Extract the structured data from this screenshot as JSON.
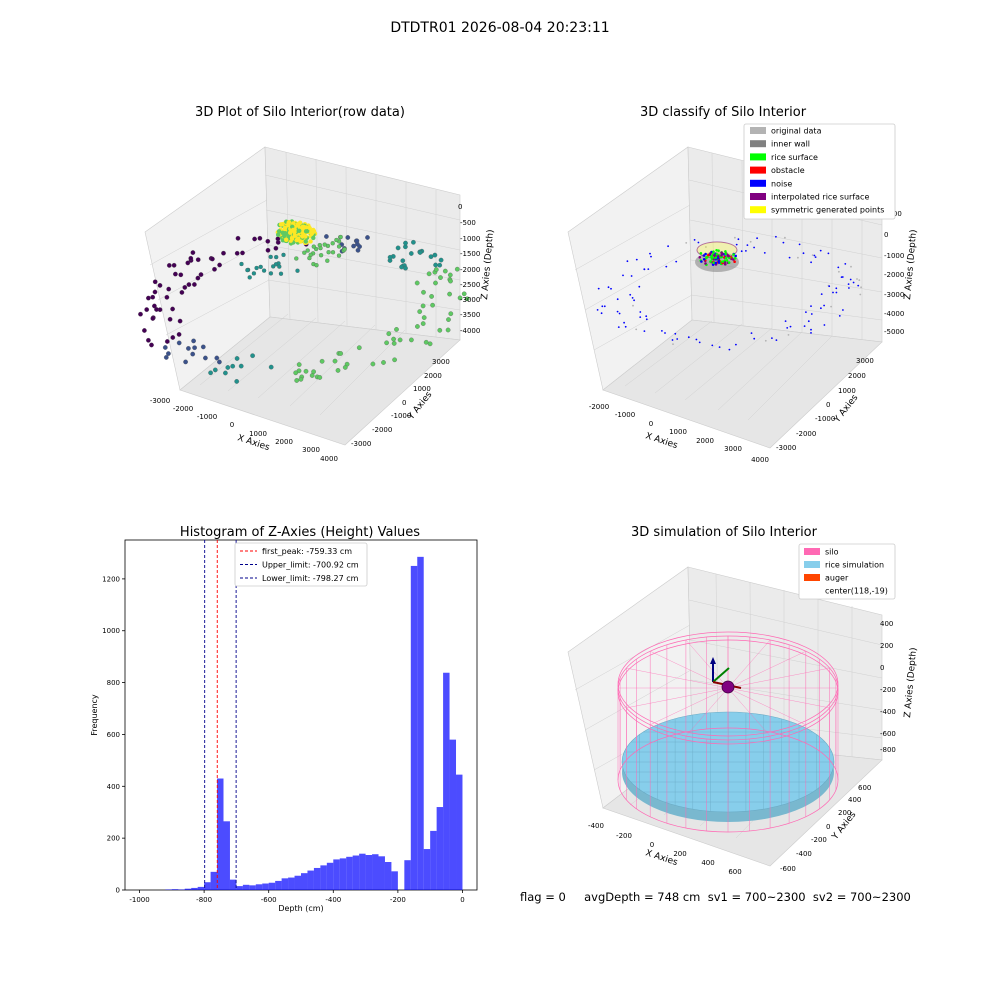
{
  "figure": {
    "suptitle": "DTDTR01 2026-08-04 20:23:11",
    "status_text": "flag = 0     avgDepth = 748 cm  sv1 = 700~2300  sv2 = 700~2300"
  },
  "chart_data": [
    {
      "type": "scatter3d",
      "title": "3D Plot of Silo Interior(row data)",
      "xlabel": "X Axies",
      "ylabel": "Y Axies",
      "zlabel": "Z Axies (Depth)",
      "xticks": [
        "-3000",
        "-2000",
        "-1000",
        "0",
        "1000",
        "2000",
        "3000",
        "4000"
      ],
      "yticks": [
        "-3000",
        "-2000",
        "-1000",
        "0",
        "1000",
        "2000",
        "3000"
      ],
      "zticks": [
        "0",
        "-500",
        "-1000",
        "-1500",
        "-2000",
        "-2500",
        "-3000",
        "-3500",
        "-4000"
      ],
      "xlim": [
        -3200,
        4200
      ],
      "ylim": [
        -3500,
        3500
      ],
      "zlim": [
        -4200,
        200
      ],
      "colormap": [
        "#440154",
        "#3b528b",
        "#21918c",
        "#5ec962",
        "#fde725"
      ],
      "grid": true
    },
    {
      "type": "scatter3d",
      "title": "3D classify of Silo Interior",
      "xlabel": "X Axies",
      "ylabel": "Y Axies",
      "zlabel": "Z Axies (Depth)",
      "xticks": [
        "-2000",
        "-1000",
        "0",
        "1000",
        "2000",
        "3000",
        "4000"
      ],
      "yticks": [
        "-3000",
        "-2000",
        "-1000",
        "0",
        "1000",
        "2000",
        "3000"
      ],
      "zticks": [
        "1000",
        "0",
        "-1000",
        "-2000",
        "-3000",
        "-4000",
        "-5000"
      ],
      "xlim": [
        -2500,
        4200
      ],
      "ylim": [
        -3500,
        3500
      ],
      "zlim": [
        -5500,
        1200
      ],
      "legend_position": "top-right",
      "legend": [
        {
          "label": "original data",
          "color": "#b3b3b3"
        },
        {
          "label": "inner wall",
          "color": "#808080"
        },
        {
          "label": "rice surface",
          "color": "#00ff00"
        },
        {
          "label": "obstacle",
          "color": "#ff0000"
        },
        {
          "label": "noise",
          "color": "#0000ff"
        },
        {
          "label": "interpolated rice surface",
          "color": "#800080"
        },
        {
          "label": "symmetric generated points",
          "color": "#ffff00"
        }
      ],
      "grid": true
    },
    {
      "type": "bar",
      "title": "Histogram of Z-Axies (Height) Values",
      "xlabel": "Depth (cm)",
      "ylabel": "Frequency",
      "xlim": [
        -1045,
        45
      ],
      "ylim": [
        0,
        1350
      ],
      "xticks": [
        -1000,
        -800,
        -600,
        -400,
        -200,
        0
      ],
      "yticks": [
        0,
        200,
        400,
        600,
        800,
        1000,
        1200
      ],
      "bar_color": "#0000ff",
      "bin_width": 20,
      "bins": [
        {
          "x0": -1000,
          "value": 0
        },
        {
          "x0": -980,
          "value": 0
        },
        {
          "x0": -960,
          "value": 0
        },
        {
          "x0": -920,
          "value": 2
        },
        {
          "x0": -900,
          "value": 3
        },
        {
          "x0": -880,
          "value": 2
        },
        {
          "x0": -860,
          "value": 5
        },
        {
          "x0": -840,
          "value": 8
        },
        {
          "x0": -820,
          "value": 12
        },
        {
          "x0": -800,
          "value": 30
        },
        {
          "x0": -780,
          "value": 70
        },
        {
          "x0": -760,
          "value": 430
        },
        {
          "x0": -740,
          "value": 265
        },
        {
          "x0": -720,
          "value": 40
        },
        {
          "x0": -700,
          "value": 15
        },
        {
          "x0": -680,
          "value": 20
        },
        {
          "x0": -660,
          "value": 18
        },
        {
          "x0": -640,
          "value": 22
        },
        {
          "x0": -620,
          "value": 25
        },
        {
          "x0": -600,
          "value": 28
        },
        {
          "x0": -580,
          "value": 35
        },
        {
          "x0": -560,
          "value": 45
        },
        {
          "x0": -540,
          "value": 48
        },
        {
          "x0": -520,
          "value": 55
        },
        {
          "x0": -500,
          "value": 65
        },
        {
          "x0": -480,
          "value": 75
        },
        {
          "x0": -460,
          "value": 85
        },
        {
          "x0": -440,
          "value": 95
        },
        {
          "x0": -420,
          "value": 105
        },
        {
          "x0": -400,
          "value": 118
        },
        {
          "x0": -380,
          "value": 122
        },
        {
          "x0": -360,
          "value": 128
        },
        {
          "x0": -340,
          "value": 133
        },
        {
          "x0": -320,
          "value": 140
        },
        {
          "x0": -300,
          "value": 135
        },
        {
          "x0": -280,
          "value": 138
        },
        {
          "x0": -260,
          "value": 130
        },
        {
          "x0": -240,
          "value": 108
        },
        {
          "x0": -220,
          "value": 72
        },
        {
          "x0": -200,
          "value": 0
        },
        {
          "x0": -180,
          "value": 115
        },
        {
          "x0": -160,
          "value": 1250
        },
        {
          "x0": -140,
          "value": 1285
        },
        {
          "x0": -120,
          "value": 158
        },
        {
          "x0": -100,
          "value": 228
        },
        {
          "x0": -80,
          "value": 320
        },
        {
          "x0": -60,
          "value": 838
        },
        {
          "x0": -40,
          "value": 580
        },
        {
          "x0": -20,
          "value": 445
        }
      ],
      "vlines": [
        {
          "label": "first_peak: -759.33 cm",
          "x": -759.33,
          "color": "#ff0000"
        },
        {
          "label": "Upper_limit: -700.92 cm",
          "x": -700.92,
          "color": "#00008b"
        },
        {
          "label": "Lower_limit: -798.27 cm",
          "x": -798.27,
          "color": "#00008b"
        }
      ],
      "legend_position": "top-center"
    },
    {
      "type": "surface3d",
      "title": "3D simulation of Silo Interior",
      "xlabel": "X Axies",
      "ylabel": "Y Axies",
      "zlabel": "Z Axies (Depth)",
      "xticks": [
        "-400",
        "-200",
        "0",
        "200",
        "400",
        "600"
      ],
      "yticks": [
        "-600",
        "-400",
        "-200",
        "0",
        "200",
        "400",
        "600"
      ],
      "zticks": [
        "400",
        "200",
        "0",
        "-200",
        "-400",
        "-600",
        "-800"
      ],
      "xlim": [
        -500,
        750
      ],
      "ylim": [
        -700,
        700
      ],
      "zlim": [
        -900,
        450
      ],
      "legend_position": "top-right",
      "legend": [
        {
          "label": "silo",
          "color": "#ff69b4"
        },
        {
          "label": "rice simulation",
          "color": "#87ceeb"
        },
        {
          "label": "auger",
          "color": "#ff4500"
        },
        {
          "label": "center(118,-19)",
          "color": ""
        }
      ],
      "grid": true
    }
  ]
}
